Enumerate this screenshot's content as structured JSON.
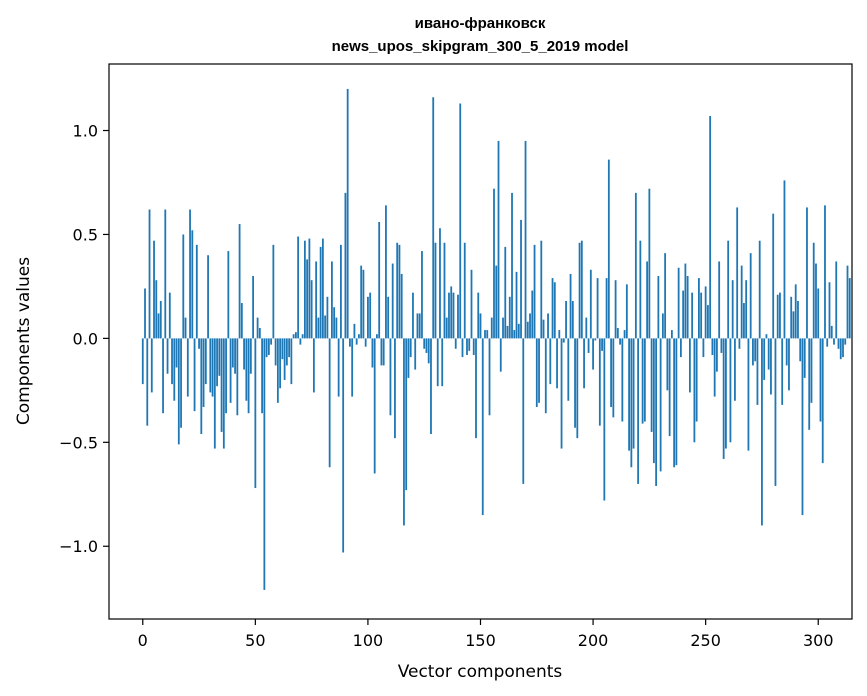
{
  "chart_data": {
    "type": "bar",
    "title": "ивано-франковск",
    "subtitle": "news_upos_skipgram_300_5_2019 model",
    "xlabel": "Vector components",
    "ylabel": "Components values",
    "xlim": [
      -15,
      315
    ],
    "ylim": [
      -1.35,
      1.32
    ],
    "xticks": [
      0,
      50,
      100,
      150,
      200,
      250,
      300
    ],
    "xtick_labels": [
      "0",
      "50",
      "100",
      "150",
      "200",
      "250",
      "300"
    ],
    "yticks": [
      -1.0,
      -0.5,
      0.0,
      0.5,
      1.0
    ],
    "ytick_labels": [
      "−1.0",
      "−0.5",
      "0.0",
      "0.5",
      "1.0"
    ],
    "bar_color": "#1f77b4",
    "grid": false,
    "values": [
      -0.22,
      0.24,
      -0.42,
      0.62,
      -0.26,
      0.47,
      0.28,
      0.12,
      0.18,
      -0.36,
      0.62,
      -0.17,
      0.22,
      -0.22,
      -0.3,
      -0.14,
      -0.51,
      -0.43,
      0.5,
      0.1,
      -0.28,
      0.62,
      0.52,
      -0.35,
      0.45,
      -0.05,
      -0.46,
      -0.33,
      -0.22,
      0.4,
      -0.26,
      -0.28,
      -0.53,
      -0.23,
      -0.18,
      -0.45,
      -0.53,
      -0.36,
      0.42,
      -0.31,
      -0.14,
      -0.17,
      -0.37,
      0.55,
      0.17,
      -0.15,
      -0.3,
      -0.36,
      -0.17,
      0.3,
      -0.72,
      0.1,
      0.05,
      -0.36,
      -1.21,
      -0.09,
      -0.08,
      -0.03,
      0.45,
      -0.13,
      -0.31,
      -0.24,
      -0.1,
      -0.2,
      -0.13,
      -0.09,
      -0.22,
      0.02,
      0.03,
      0.49,
      -0.03,
      0.02,
      0.47,
      0.38,
      0.48,
      0.28,
      -0.26,
      0.37,
      0.1,
      0.44,
      0.48,
      0.11,
      0.2,
      -0.62,
      0.37,
      0.15,
      0.1,
      -0.28,
      0.45,
      -1.03,
      0.7,
      1.2,
      -0.04,
      -0.28,
      0.07,
      -0.03,
      0.02,
      0.35,
      0.33,
      -0.04,
      0.2,
      0.22,
      -0.14,
      -0.65,
      0.02,
      0.56,
      -0.13,
      -0.13,
      0.64,
      0.2,
      -0.37,
      0.36,
      -0.48,
      0.46,
      0.45,
      0.31,
      -0.9,
      -0.73,
      -0.19,
      -0.09,
      0.22,
      -0.15,
      0.12,
      0.12,
      0.42,
      -0.05,
      -0.07,
      -0.12,
      -0.46,
      1.16,
      0.46,
      -0.23,
      0.53,
      -0.23,
      0.46,
      0.1,
      0.22,
      0.25,
      0.22,
      -0.05,
      0.21,
      1.13,
      -0.09,
      0.46,
      -0.08,
      -0.06,
      0.33,
      -0.08,
      -0.48,
      0.22,
      0.12,
      -0.85,
      0.04,
      0.04,
      -0.37,
      0.1,
      0.72,
      0.35,
      0.95,
      -0.16,
      0.1,
      0.44,
      0.06,
      0.2,
      0.7,
      0.04,
      0.32,
      0.07,
      0.57,
      -0.7,
      0.95,
      0.08,
      0.12,
      0.23,
      0.45,
      -0.33,
      -0.31,
      0.47,
      0.09,
      -0.36,
      0.12,
      -0.22,
      0.29,
      0.27,
      -0.24,
      0.04,
      -0.53,
      -0.02,
      0.18,
      -0.3,
      0.31,
      0.18,
      -0.43,
      -0.48,
      0.46,
      0.47,
      -0.24,
      0.1,
      -0.07,
      0.33,
      -0.15,
      -0.01,
      0.29,
      -0.42,
      -0.06,
      -0.78,
      0.29,
      0.86,
      -0.33,
      -0.38,
      0.28,
      0.05,
      -0.03,
      -0.4,
      0.04,
      0.26,
      -0.54,
      -0.62,
      -0.53,
      0.7,
      -0.7,
      0.47,
      -0.41,
      -0.4,
      0.37,
      0.72,
      -0.45,
      -0.6,
      -0.71,
      0.3,
      -0.64,
      0.12,
      0.41,
      -0.25,
      -0.47,
      0.04,
      -0.62,
      -0.61,
      0.34,
      -0.09,
      0.23,
      0.36,
      0.3,
      -0.26,
      0.22,
      -0.5,
      -0.4,
      0.29,
      0.22,
      -0.09,
      0.25,
      0.16,
      1.07,
      -0.08,
      -0.28,
      -0.16,
      0.37,
      -0.07,
      -0.58,
      -0.53,
      0.47,
      -0.5,
      0.28,
      -0.3,
      0.63,
      -0.05,
      0.35,
      0.17,
      0.28,
      -0.54,
      0.41,
      -0.13,
      -0.11,
      -0.32,
      0.47,
      -0.9,
      -0.2,
      0.02,
      -0.15,
      -0.27,
      0.6,
      -0.71,
      0.21,
      0.22,
      -0.32,
      0.76,
      -0.13,
      -0.25,
      0.2,
      0.13,
      0.26,
      0.18,
      -0.11,
      -0.85,
      -0.19,
      0.63,
      -0.44,
      -0.31,
      0.46,
      0.36,
      0.24,
      -0.4,
      -0.6,
      0.64,
      -0.04,
      0.27,
      0.06,
      -0.03,
      0.37,
      -0.05,
      -0.1,
      -0.09,
      -0.03,
      0.35,
      0.29
    ]
  }
}
